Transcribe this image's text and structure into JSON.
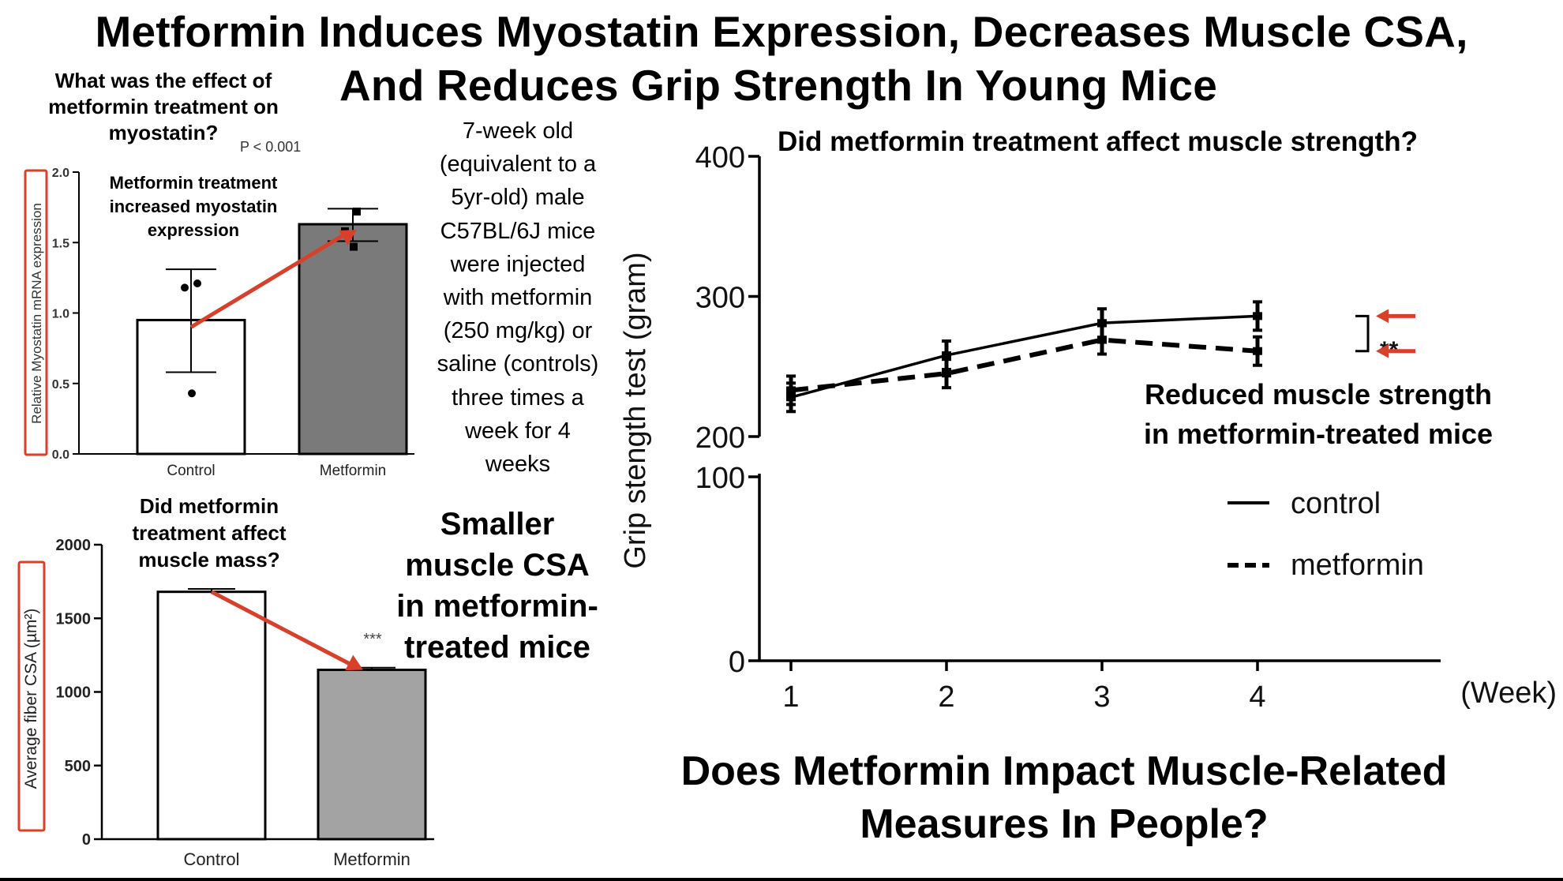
{
  "title": {
    "line1": "Metformin Induces Myostatin Expression, Decreases Muscle CSA,",
    "line2": "And Reduces Grip Strength In Young Mice"
  },
  "colors": {
    "arrow": "#d9402b",
    "metformin_bar_dark": "#7a7a7a",
    "metformin_bar_light": "#a3a3a3",
    "label_box": "#d9402b"
  },
  "panel_myostatin": {
    "question": [
      "What was the effect of",
      "metformin treatment on",
      "myostatin?"
    ],
    "pvalue": "P < 0.001",
    "annotation": [
      "Metformin treatment",
      "increased myostatin",
      "expression"
    ]
  },
  "study_description": [
    "7-week old",
    "(equivalent to a",
    "5yr-old) male",
    "C57BL/6J mice",
    "were injected",
    "with metformin",
    "(250 mg/kg) or",
    "saline (controls)",
    "three times a",
    "week for 4",
    "weeks"
  ],
  "panel_csa": {
    "question": [
      "Did metformin",
      "treatment affect",
      "muscle mass?"
    ],
    "significance": "***",
    "conclusion": [
      "Smaller",
      "muscle CSA",
      "in metformin-",
      "treated mice"
    ]
  },
  "panel_grip": {
    "question": "Did metformin treatment affect muscle strength?",
    "significance": "**",
    "conclusion": [
      "Reduced muscle strength",
      "in metformin-treated mice"
    ]
  },
  "bottom_question": [
    "Does Metformin Impact Muscle-Related",
    "Measures In People?"
  ],
  "chart_data": [
    {
      "type": "bar",
      "ylabel": "Relative Myostatin mRNA expression",
      "categories": [
        "Control",
        "Metformin"
      ],
      "values": [
        0.95,
        1.63
      ],
      "error_low": [
        0.58,
        1.51
      ],
      "error_high": [
        1.31,
        1.74
      ],
      "points": [
        [
          0.43,
          1.18,
          1.21
        ],
        [
          1.47,
          1.58,
          1.72
        ]
      ],
      "ylim": [
        0,
        2.0
      ],
      "yticks": [
        0.0,
        0.5,
        1.0,
        1.5,
        2.0
      ],
      "ytick_labels": [
        "0.0",
        "0.5",
        "1.0",
        "1.5",
        "2.0"
      ],
      "bar_colors": [
        "#ffffff",
        "#7a7a7a"
      ]
    },
    {
      "type": "bar",
      "ylabel": "Average fiber CSA (µm²)",
      "categories": [
        "Control",
        "Metformin"
      ],
      "values": [
        1680,
        1150
      ],
      "error_high": [
        1700,
        1165
      ],
      "ylim": [
        0,
        2000
      ],
      "yticks": [
        0,
        500,
        1000,
        1500,
        2000
      ],
      "ytick_labels": [
        "0",
        "500",
        "1000",
        "1500",
        "2000"
      ],
      "bar_colors": [
        "#ffffff",
        "#a3a3a3"
      ]
    },
    {
      "type": "line",
      "ylabel": "Grip stength test (gram)",
      "xlabel": "(Week)",
      "x": [
        1,
        2,
        3,
        4
      ],
      "x_tick_labels": [
        "1",
        "2",
        "3",
        "4"
      ],
      "y_tick_labels": [
        "0",
        "100",
        "200",
        "300",
        "400"
      ],
      "axis_break": [
        100,
        200
      ],
      "series": [
        {
          "name": "control",
          "values": [
            228,
            258,
            281,
            286
          ],
          "style": "solid"
        },
        {
          "name": "metformin",
          "values": [
            233,
            245,
            269,
            261
          ],
          "style": "dashed"
        }
      ]
    }
  ]
}
